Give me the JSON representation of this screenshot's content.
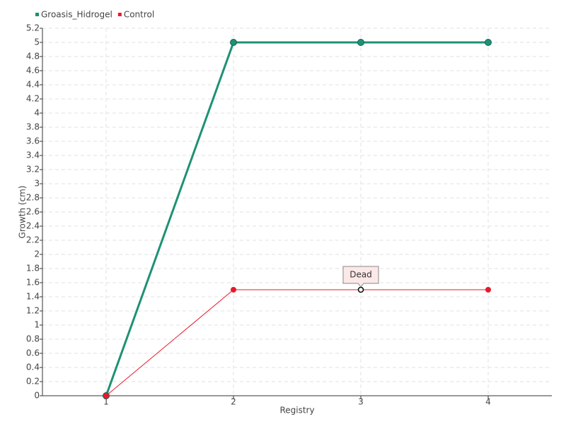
{
  "chart_data": {
    "type": "line",
    "x_label": "Registry",
    "y_label": "Growth (cm)",
    "categories": [
      "1",
      "2",
      "3",
      "4"
    ],
    "series": [
      {
        "name": "Groasis_Hidrogel",
        "color": "#1e9174",
        "values": [
          0,
          5,
          5,
          5
        ]
      },
      {
        "name": "Control",
        "color": "#e8192c",
        "values": [
          0,
          1.5,
          1.5,
          1.5
        ],
        "point_labels": [
          null,
          null,
          "Dead",
          null
        ]
      }
    ],
    "ylim": [
      0,
      5.2
    ],
    "yticks": [
      0,
      0.2,
      0.4,
      0.6,
      0.8,
      1,
      1.2,
      1.4,
      1.6,
      1.8,
      2,
      2.2,
      2.4,
      2.6,
      2.8,
      3,
      3.2,
      3.4,
      3.6,
      3.8,
      4,
      4.2,
      4.4,
      4.6,
      4.8,
      5,
      5.2
    ],
    "grid": true,
    "legend": "top-left"
  }
}
